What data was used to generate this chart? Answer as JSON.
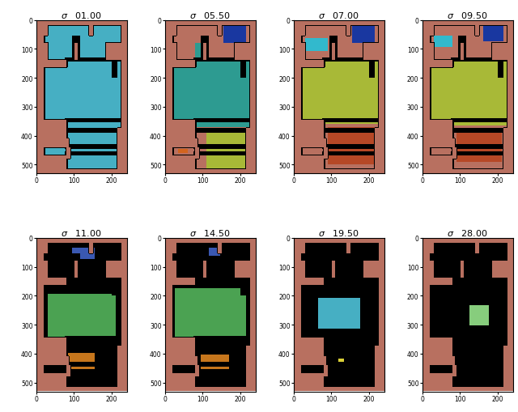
{
  "sigmas_row1": [
    "01.00",
    "05.50",
    "07.00",
    "09.50"
  ],
  "sigmas_row2": [
    "11.00",
    "14.50",
    "19.50",
    "28.00"
  ],
  "bg_color": [
    184,
    112,
    96
  ],
  "black_color": [
    0,
    0,
    0
  ],
  "figsize": [
    6.4,
    5.1
  ],
  "dpi": 100,
  "xlim": [
    0,
    240
  ],
  "ylim": [
    530,
    0
  ],
  "xticks": [
    0,
    100,
    200
  ],
  "yticks": [
    0,
    100,
    200,
    300,
    400,
    500
  ],
  "sigma_fontsize": 8,
  "tick_fontsize": 5.5,
  "colors": {
    "teal_bright": [
      70,
      175,
      195
    ],
    "blue_dark": [
      25,
      55,
      160
    ],
    "teal_dark": [
      45,
      155,
      145
    ],
    "yellow_green": [
      168,
      185,
      55
    ],
    "rust": [
      182,
      72,
      38
    ],
    "green_medium": [
      75,
      162,
      82
    ],
    "orange": [
      198,
      118,
      28
    ],
    "cyan_light": [
      50,
      185,
      205
    ],
    "green_light": [
      135,
      205,
      125
    ],
    "yellow_dot": [
      218,
      208,
      55
    ],
    "blue_dotted": [
      58,
      88,
      178
    ]
  }
}
